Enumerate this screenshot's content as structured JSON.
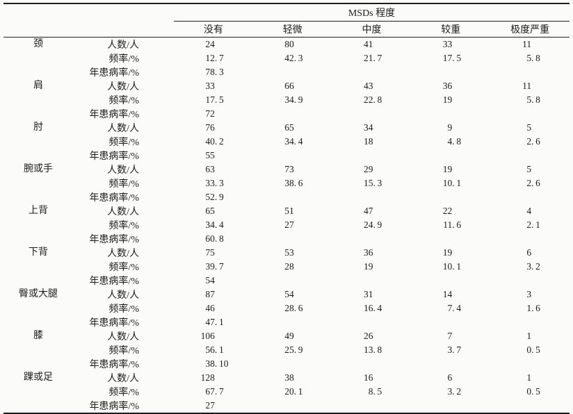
{
  "page": {
    "background_color": "#fbfbfa",
    "text_color": "#1b1b1b",
    "rule_color": "#1c1c1c"
  },
  "table": {
    "header": {
      "span_title": "MSDs 程度",
      "columns": [
        "没有",
        "轻微",
        "中度",
        "较重",
        "极度严重"
      ]
    },
    "metrics_legend": [
      "人数/人",
      "频率/%",
      "年患病率/%"
    ],
    "groups": [
      {
        "part": "颈",
        "rows": [
          {
            "metric": "人数/人",
            "values": [
              "24",
              "80",
              "41",
              "33",
              "11"
            ]
          },
          {
            "metric": "频率/%",
            "values": [
              "12.7",
              "42.3",
              "21.7",
              "17.5",
              "5.8"
            ]
          },
          {
            "metric": "年患病率/%",
            "values": [
              "78.3",
              "",
              "",
              "",
              ""
            ]
          }
        ]
      },
      {
        "part": "肩",
        "rows": [
          {
            "metric": "人数/人",
            "values": [
              "33",
              "66",
              "43",
              "36",
              "11"
            ]
          },
          {
            "metric": "频率/%",
            "values": [
              "17.5",
              "34.9",
              "22.8",
              "19",
              "5.8"
            ]
          },
          {
            "metric": "年患病率/%",
            "values": [
              "72",
              "",
              "",
              "",
              ""
            ]
          }
        ]
      },
      {
        "part": "肘",
        "rows": [
          {
            "metric": "人数/人",
            "values": [
              "76",
              "65",
              "34",
              "9",
              "5"
            ]
          },
          {
            "metric": "频率/%",
            "values": [
              "40.2",
              "34.4",
              "18",
              "4.8",
              "2.6"
            ]
          },
          {
            "metric": "年患病率/%",
            "values": [
              "55",
              "",
              "",
              "",
              ""
            ]
          }
        ]
      },
      {
        "part": "腕或手",
        "rows": [
          {
            "metric": "人数/人",
            "values": [
              "63",
              "73",
              "29",
              "19",
              "5"
            ]
          },
          {
            "metric": "频率/%",
            "values": [
              "33.3",
              "38.6",
              "15.3",
              "10.1",
              "2.6"
            ]
          },
          {
            "metric": "年患病率/%",
            "values": [
              "52.9",
              "",
              "",
              "",
              ""
            ]
          }
        ]
      },
      {
        "part": "上背",
        "rows": [
          {
            "metric": "人数/人",
            "values": [
              "65",
              "51",
              "47",
              "22",
              "4"
            ]
          },
          {
            "metric": "频率/%",
            "values": [
              "34.4",
              "27",
              "24.9",
              "11.6",
              "2.1"
            ]
          },
          {
            "metric": "年患病率/%",
            "values": [
              "60.8",
              "",
              "",
              "",
              ""
            ]
          }
        ]
      },
      {
        "part": "下背",
        "rows": [
          {
            "metric": "人数/人",
            "values": [
              "75",
              "53",
              "36",
              "19",
              "6"
            ]
          },
          {
            "metric": "频率/%",
            "values": [
              "39.7",
              "28",
              "19",
              "10.1",
              "3.2"
            ]
          },
          {
            "metric": "年患病率/%",
            "values": [
              "54",
              "",
              "",
              "",
              ""
            ]
          }
        ]
      },
      {
        "part": "臀或大腿",
        "rows": [
          {
            "metric": "人数/人",
            "values": [
              "87",
              "54",
              "31",
              "14",
              "3"
            ]
          },
          {
            "metric": "频率/%",
            "values": [
              "46",
              "28.6",
              "16.4",
              "7.4",
              "1.6"
            ]
          },
          {
            "metric": "年患病率/%",
            "values": [
              "47.1",
              "",
              "",
              "",
              ""
            ]
          }
        ]
      },
      {
        "part": "膝",
        "rows": [
          {
            "metric": "人数/人",
            "values": [
              "106",
              "49",
              "26",
              "7",
              "1"
            ]
          },
          {
            "metric": "频率/%",
            "values": [
              "56.1",
              "25.9",
              "13.8",
              "3.7",
              "0.5"
            ]
          },
          {
            "metric": "年患病率/%",
            "values": [
              "38.10",
              "",
              "",
              "",
              ""
            ]
          }
        ]
      },
      {
        "part": "踝或足",
        "rows": [
          {
            "metric": "人数/人",
            "values": [
              "128",
              "38",
              "16",
              "6",
              "1"
            ]
          },
          {
            "metric": "频率/%",
            "values": [
              "67.7",
              "20.1",
              "8.5",
              "3.2",
              "0.5"
            ]
          },
          {
            "metric": "年患病率/%",
            "values": [
              "27",
              "",
              "",
              "",
              ""
            ]
          }
        ]
      }
    ]
  }
}
